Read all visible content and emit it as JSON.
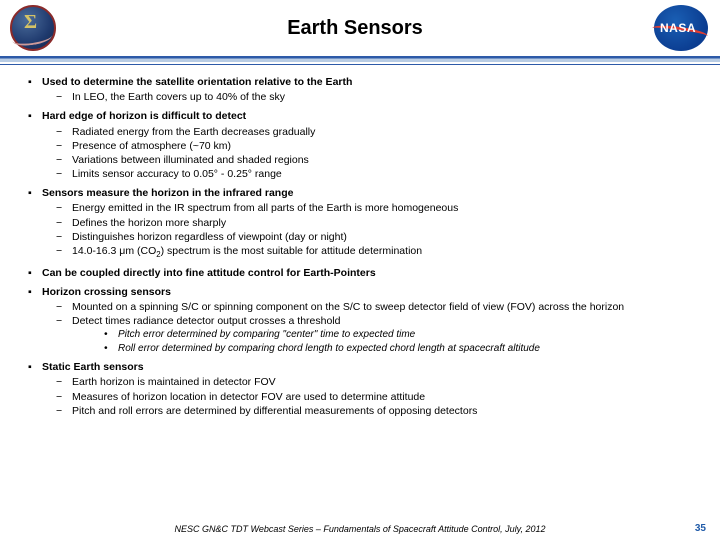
{
  "title": "Earth Sensors",
  "logos": {
    "left_sigma": "Σ",
    "right_text": "NASA"
  },
  "bullets": [
    {
      "text": "Used to determine the satellite orientation relative to the Earth",
      "subs": [
        {
          "text": "In LEO, the Earth covers up to 40% of the sky"
        }
      ]
    },
    {
      "text": "Hard edge of horizon is difficult to detect",
      "subs": [
        {
          "text": "Radiated energy from the Earth decreases gradually"
        },
        {
          "text": "Presence of atmosphere (~70 km)"
        },
        {
          "text": "Variations between illuminated and shaded regions"
        },
        {
          "text": "Limits sensor accuracy to 0.05° - 0.25° range"
        }
      ]
    },
    {
      "text": "Sensors measure the horizon in the infrared range",
      "subs": [
        {
          "text": "Energy emitted in the IR spectrum from all parts of the Earth is more homogeneous"
        },
        {
          "text": "Defines the horizon more sharply"
        },
        {
          "text": "Distinguishes horizon regardless of viewpoint (day or night)"
        },
        {
          "html": "14.0-16.3 μm (CO<sub>2</sub>) spectrum is the most suitable for attitude determination"
        }
      ]
    },
    {
      "text": "Can be coupled directly into fine attitude control for Earth-Pointers"
    },
    {
      "text": "Horizon crossing sensors",
      "subs": [
        {
          "text": "Mounted on a spinning S/C or spinning component on the S/C to sweep detector field of view (FOV) across the horizon"
        },
        {
          "text": "Detect times radiance detector output crosses a threshold",
          "subsubs": [
            {
              "text": "Pitch error determined by comparing \"center\" time to expected time"
            },
            {
              "text": "Roll error determined by comparing chord length to expected chord length at spacecraft altitude"
            }
          ]
        }
      ]
    },
    {
      "text": "Static Earth sensors",
      "subs": [
        {
          "text": "Earth horizon is maintained in detector FOV"
        },
        {
          "text": "Measures of horizon location in detector FOV are used to determine attitude"
        },
        {
          "text": "Pitch and roll errors are determined by differential measurements of opposing detectors"
        }
      ]
    }
  ],
  "footer": "NESC GN&C TDT Webcast Series – Fundamentals of Spacecraft Attitude Control, July, 2012",
  "page_number": "35",
  "markers": {
    "square": "▪",
    "dash": "−",
    "dot": "•"
  },
  "colors": {
    "rule_blue": "#2d5aa8",
    "pagenum": "#1f5aa8",
    "nasa_blue": "#0b3d91",
    "nasa_red": "#e03c31"
  }
}
